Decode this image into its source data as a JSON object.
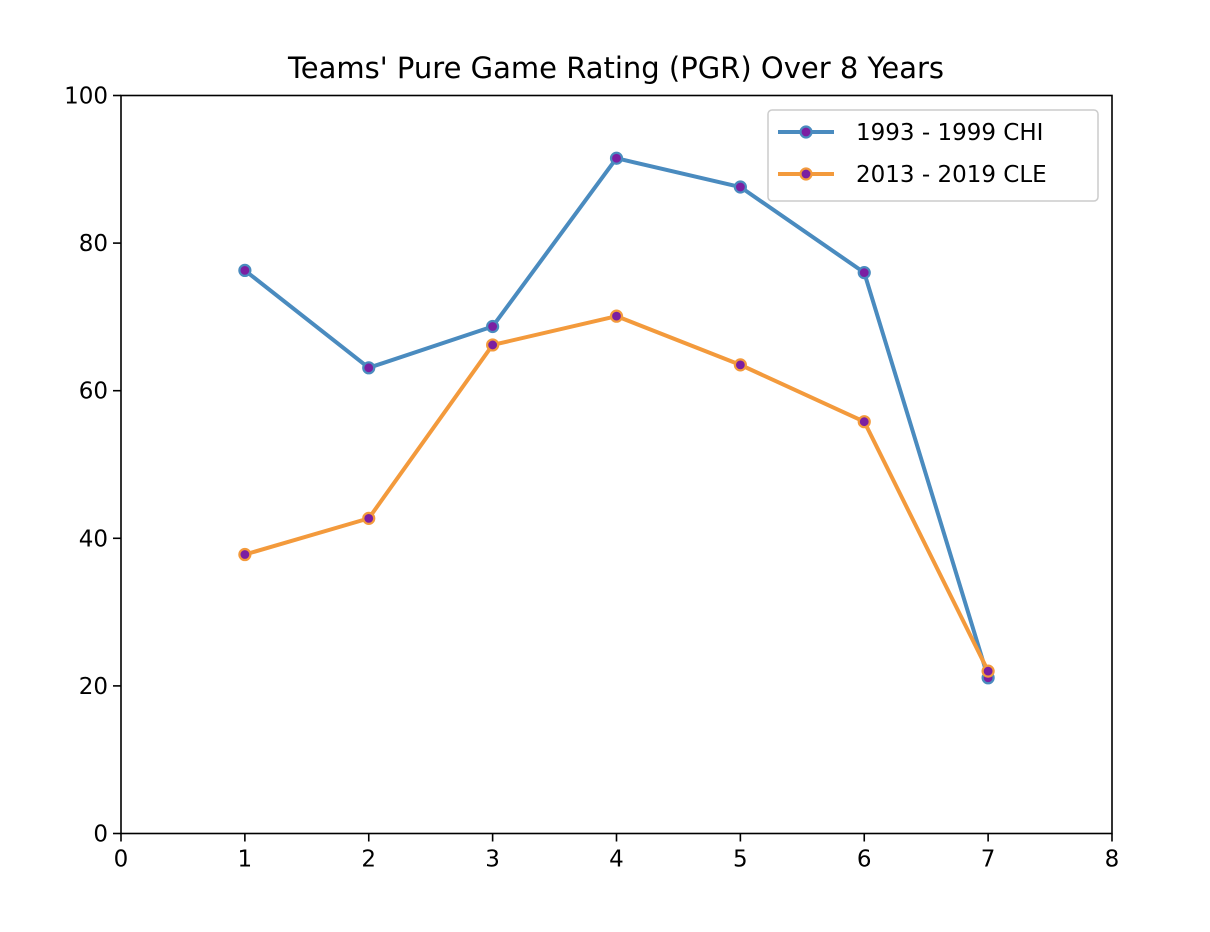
{
  "chart_data": {
    "type": "line",
    "title": "Teams' Pure Game Rating (PGR) Over 8 Years",
    "xlabel": "",
    "ylabel": "",
    "xlim": [
      0,
      8
    ],
    "ylim": [
      0,
      100
    ],
    "xticks": [
      "0",
      "1",
      "2",
      "3",
      "4",
      "5",
      "6",
      "7",
      "8"
    ],
    "yticks": [
      "0",
      "20",
      "40",
      "60",
      "80",
      "100"
    ],
    "grid": false,
    "legend_position": "top-right",
    "x": [
      1,
      2,
      3,
      4,
      5,
      6,
      7
    ],
    "marker_fill": "#7b1fa2",
    "series": [
      {
        "name": "1993 - 1999 CHI",
        "color": "#4a8bbf",
        "values": [
          76.3,
          63.1,
          68.7,
          91.5,
          87.6,
          76.0,
          21.1
        ]
      },
      {
        "name": "2013 - 2019 CLE",
        "color": "#f39a3c",
        "values": [
          37.8,
          42.7,
          66.2,
          70.1,
          63.5,
          55.8,
          22.0
        ]
      }
    ]
  }
}
